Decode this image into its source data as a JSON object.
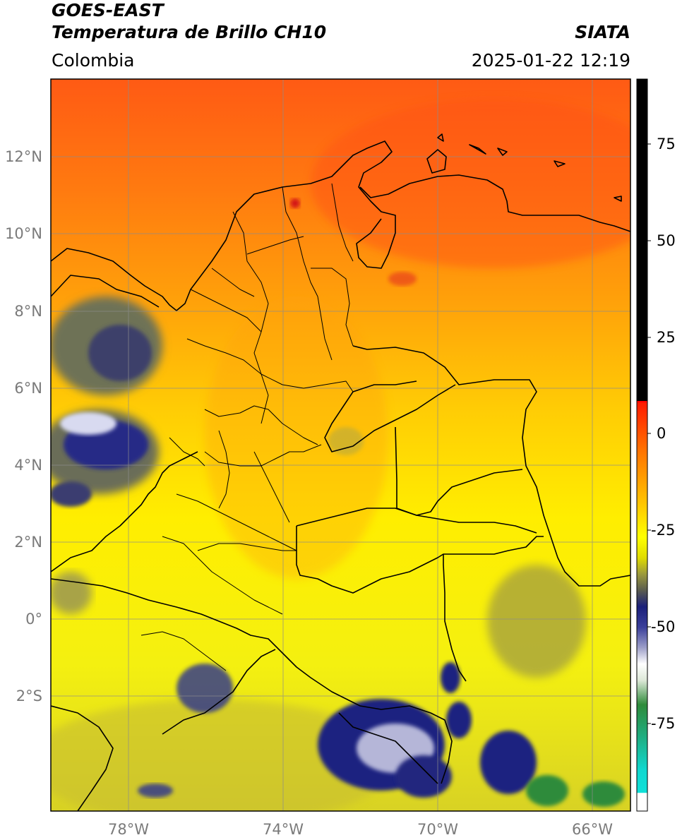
{
  "header": {
    "satellite": "GOES-EAST",
    "product": "Temperatura de Brillo CH10",
    "region": "Colombia",
    "organization": "SIATA",
    "timestamp": "2025-01-22 12:19"
  },
  "map": {
    "extent": {
      "lon_min": -80,
      "lon_max": -65,
      "lat_min": -5,
      "lat_max": 14
    },
    "lat_ticks": [
      {
        "value": 12,
        "label": "12°N"
      },
      {
        "value": 10,
        "label": "10°N"
      },
      {
        "value": 8,
        "label": "8°N"
      },
      {
        "value": 6,
        "label": "6°N"
      },
      {
        "value": 4,
        "label": "4°N"
      },
      {
        "value": 2,
        "label": "2°N"
      },
      {
        "value": 0,
        "label": "0°"
      },
      {
        "value": -2,
        "label": "2°S"
      }
    ],
    "lon_ticks": [
      {
        "value": -78,
        "label": "78°W"
      },
      {
        "value": -74,
        "label": "74°W"
      },
      {
        "value": -70,
        "label": "70°W"
      },
      {
        "value": -66,
        "label": "66°W"
      }
    ],
    "grid": true
  },
  "colorbar": {
    "range": [
      -95,
      90
    ],
    "ticks": [
      {
        "value": 75,
        "label": "75"
      },
      {
        "value": 50,
        "label": "50"
      },
      {
        "value": 25,
        "label": "25"
      },
      {
        "value": 0,
        "label": "0"
      },
      {
        "value": -25,
        "label": "-25"
      },
      {
        "value": -50,
        "label": "-50"
      },
      {
        "value": -75,
        "label": "-75"
      }
    ],
    "colors": {
      "white": "#ffffff",
      "cyan": "#10d8d0",
      "green": "#2e8b3a",
      "navy": "#1a1f7a",
      "olive": "#9c9a3c",
      "yellow": "#ffff00",
      "orange": "#ff9800",
      "red": "#ee2a10",
      "black": "#000000"
    }
  }
}
